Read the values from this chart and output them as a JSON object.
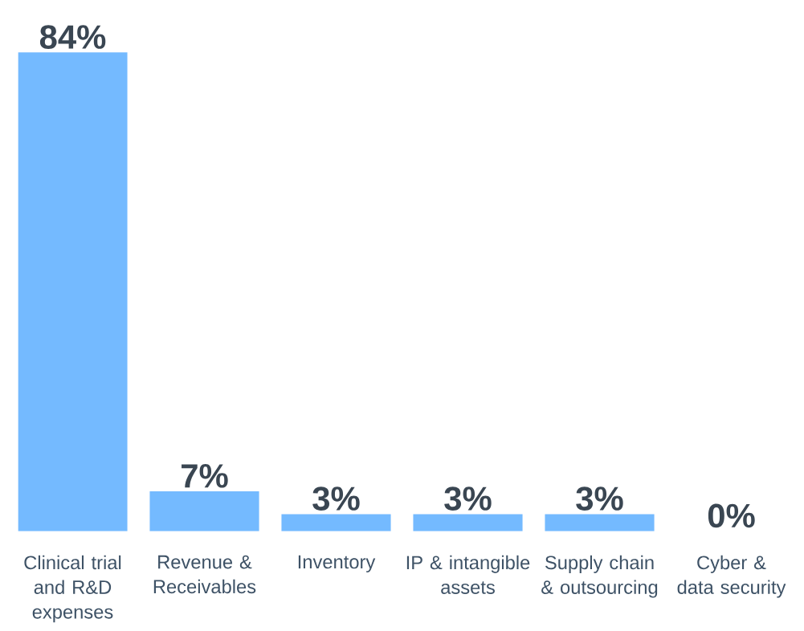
{
  "chart_data": {
    "type": "bar",
    "categories": [
      "Clinical trial and R&D expenses",
      "Revenue & Receivables",
      "Inventory",
      "IP & intangible assets",
      "Supply chain & outsourcing",
      "Cyber & data security"
    ],
    "values": [
      84,
      7,
      3,
      3,
      3,
      0
    ],
    "value_labels": [
      "84%",
      "7%",
      "3%",
      "3%",
      "3%",
      "0%"
    ],
    "color": "#74baff"
  }
}
